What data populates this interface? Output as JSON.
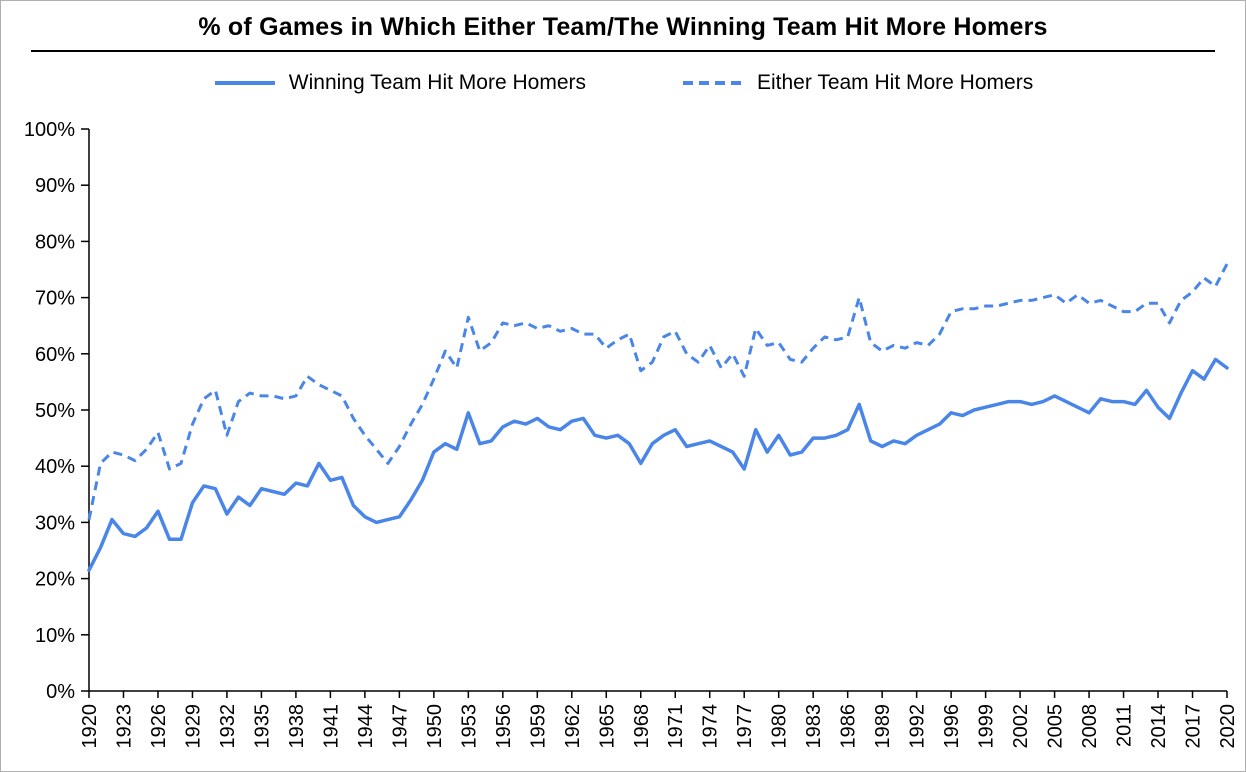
{
  "accent_color": "#4a86e8",
  "chart_data": {
    "type": "line",
    "title": "% of Games in Which Either Team/The Winning Team Hit More Homers",
    "xlabel": "",
    "ylabel": "",
    "ylim": [
      0,
      100
    ],
    "grid": false,
    "legend_position": "top",
    "line_color": "#4a86e8",
    "y_ticks": [
      "0%",
      "10%",
      "20%",
      "30%",
      "40%",
      "50%",
      "60%",
      "70%",
      "80%",
      "90%",
      "100%"
    ],
    "x_tick_labels": [
      "1920",
      "1923",
      "1926",
      "1929",
      "1932",
      "1935",
      "1938",
      "1941",
      "1944",
      "1947",
      "1950",
      "1953",
      "1956",
      "1959",
      "1962",
      "1965",
      "1968",
      "1971",
      "1974",
      "1977",
      "1980",
      "1983",
      "1986",
      "1989",
      "1992",
      "1996",
      "1999",
      "2002",
      "2005",
      "2008",
      "2011",
      "2014",
      "2017",
      "2020"
    ],
    "x_note": "Years 1920-2020, 1994 excluded",
    "x": [
      1920,
      1921,
      1922,
      1923,
      1924,
      1925,
      1926,
      1927,
      1928,
      1929,
      1930,
      1931,
      1932,
      1933,
      1934,
      1935,
      1936,
      1937,
      1938,
      1939,
      1940,
      1941,
      1942,
      1943,
      1944,
      1945,
      1946,
      1947,
      1948,
      1949,
      1950,
      1951,
      1952,
      1953,
      1954,
      1955,
      1956,
      1957,
      1958,
      1959,
      1960,
      1961,
      1962,
      1963,
      1964,
      1965,
      1966,
      1967,
      1968,
      1969,
      1970,
      1971,
      1972,
      1973,
      1974,
      1975,
      1976,
      1977,
      1978,
      1979,
      1980,
      1981,
      1982,
      1983,
      1984,
      1985,
      1986,
      1987,
      1988,
      1989,
      1990,
      1991,
      1992,
      1993,
      1995,
      1996,
      1997,
      1998,
      1999,
      2000,
      2001,
      2002,
      2003,
      2004,
      2005,
      2006,
      2007,
      2008,
      2009,
      2010,
      2011,
      2012,
      2013,
      2014,
      2015,
      2016,
      2017,
      2018,
      2019,
      2020
    ],
    "series": [
      {
        "name": "Winning Team Hit More Homers",
        "style": "solid",
        "values": [
          21.5,
          25.5,
          30.5,
          28,
          27.5,
          29,
          32,
          27,
          27,
          33.5,
          36.5,
          36,
          31.5,
          34.5,
          33,
          36,
          35.5,
          35,
          37,
          36.5,
          40.5,
          37.5,
          38,
          33,
          31,
          30,
          30.5,
          31,
          34,
          37.5,
          42.5,
          44,
          43,
          49.5,
          44,
          44.5,
          47,
          48,
          47.5,
          48.5,
          47,
          46.5,
          48,
          48.5,
          45.5,
          45,
          45.5,
          44,
          40.5,
          44,
          45.5,
          46.5,
          43.5,
          44,
          44.5,
          43.5,
          42.5,
          39.5,
          46.5,
          42.5,
          45.5,
          42,
          42.5,
          45,
          45,
          45.5,
          46.5,
          51,
          44.5,
          43.5,
          44.5,
          44,
          45.5,
          46.5,
          47.5,
          49.5,
          49,
          50,
          50.5,
          51,
          51.5,
          51.5,
          51,
          51.5,
          52.5,
          51.5,
          50.5,
          49.5,
          52,
          51.5,
          51.5,
          51,
          53.5,
          50.5,
          48.5,
          53,
          57,
          55.5,
          59,
          57.5
        ]
      },
      {
        "name": "Either Team Hit More Homers",
        "style": "dashed",
        "values": [
          30.5,
          40.5,
          42.5,
          42,
          41,
          43,
          46,
          39.5,
          40.5,
          47.5,
          52,
          53.5,
          45.5,
          51.5,
          53,
          52.5,
          52.5,
          52,
          52.5,
          56,
          54.5,
          53.5,
          52.5,
          48.5,
          45.5,
          43,
          40.5,
          43.5,
          47.5,
          51,
          55.5,
          60.5,
          57.5,
          66.5,
          60.5,
          62,
          65.5,
          65,
          65.5,
          64.5,
          65,
          64,
          64.5,
          63.5,
          63.5,
          61,
          62.5,
          63.5,
          57,
          58.5,
          63,
          64,
          60,
          58.5,
          61.5,
          57.5,
          60,
          56,
          64.5,
          61.5,
          62,
          59,
          58.5,
          61,
          63,
          62.5,
          63,
          70,
          62,
          60.5,
          61.5,
          61,
          62,
          61.5,
          63.5,
          67.5,
          68,
          68,
          68.5,
          68.5,
          69,
          69.5,
          69.5,
          70,
          70.5,
          69,
          70.5,
          69,
          69.5,
          68.5,
          67.5,
          67.5,
          69,
          69,
          65.5,
          69.5,
          71,
          73.5,
          72,
          76
        ]
      }
    ]
  }
}
